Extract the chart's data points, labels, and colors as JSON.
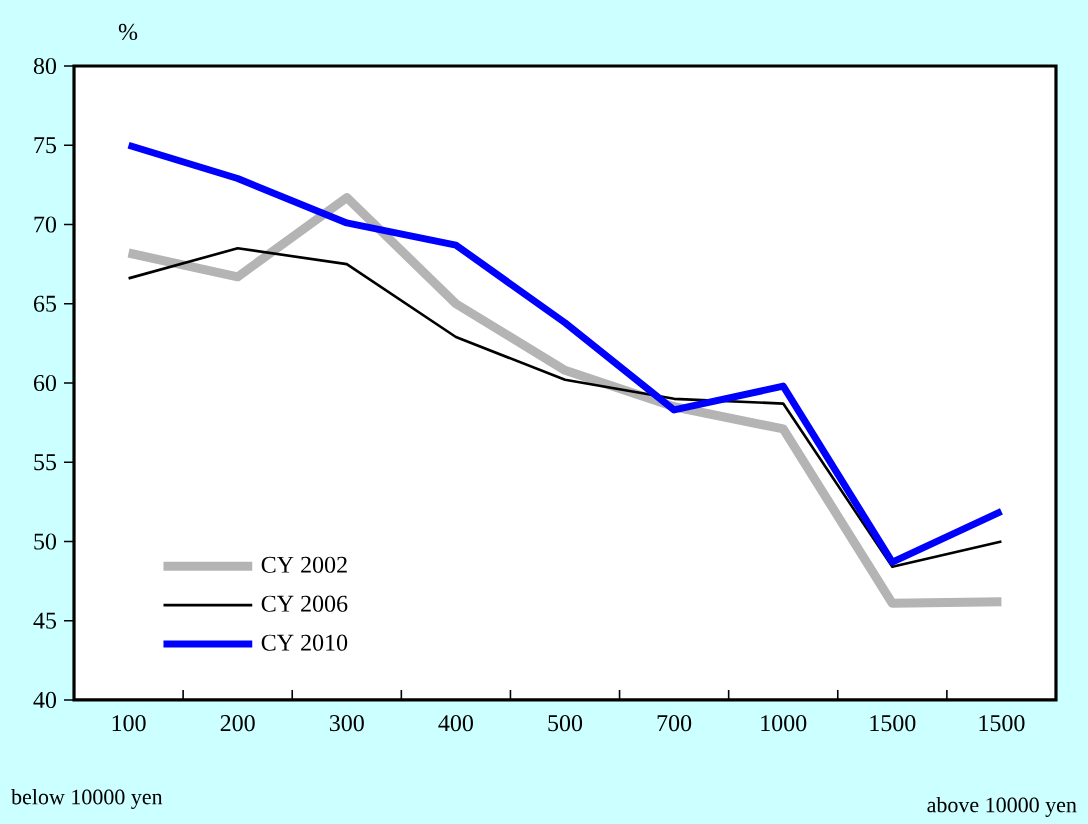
{
  "chart_data": {
    "type": "line",
    "ylabel": "%",
    "categories": [
      "100",
      "200",
      "300",
      "400",
      "500",
      "700",
      "1000",
      "1500",
      "1500"
    ],
    "series": [
      {
        "name": "CY 2002",
        "color": "#b4b4b4",
        "values": [
          68.2,
          66.7,
          71.7,
          65.0,
          60.8,
          58.5,
          57.1,
          46.1,
          46.2
        ]
      },
      {
        "name": "CY 2006",
        "color": "#000000",
        "values": [
          66.6,
          68.5,
          67.5,
          62.9,
          60.2,
          59.0,
          58.7,
          48.4,
          50.0
        ]
      },
      {
        "name": "CY 2010",
        "color": "#0000ff",
        "values": [
          75.0,
          72.9,
          70.1,
          68.7,
          63.8,
          58.3,
          59.8,
          48.7,
          51.9
        ]
      }
    ],
    "ylim": [
      40,
      80
    ],
    "yticks": [
      40,
      45,
      50,
      55,
      60,
      65,
      70,
      75,
      80
    ],
    "legend": "bottom left",
    "marker": "none",
    "line_style": "solid",
    "annotations": [
      "below 10000 yen",
      "above 10000 yen"
    ]
  }
}
